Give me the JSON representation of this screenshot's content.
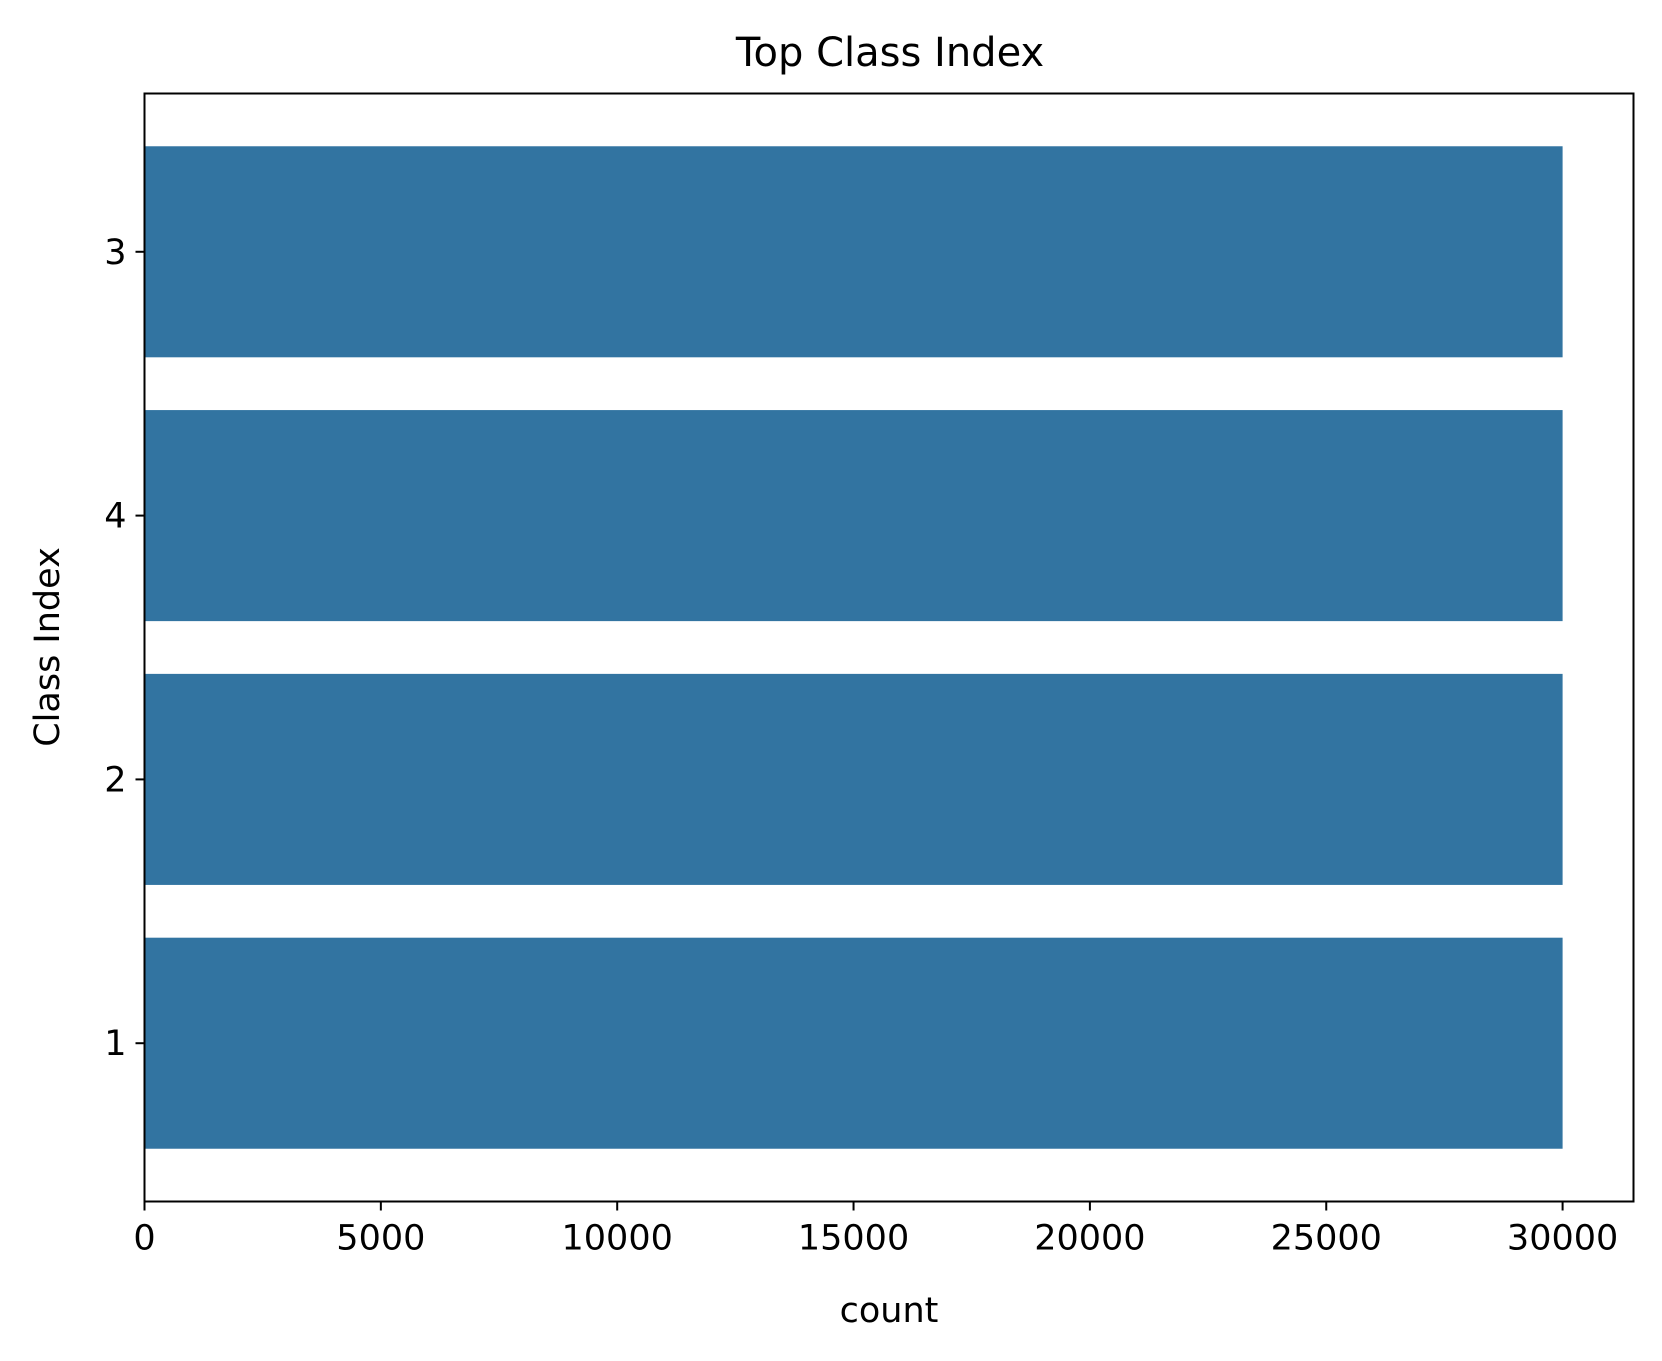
{
  "chart_data": {
    "type": "bar",
    "orientation": "horizontal",
    "title": "Top Class Index",
    "xlabel": "count",
    "ylabel": "Class Index",
    "categories": [
      "3",
      "4",
      "2",
      "1"
    ],
    "values": [
      30000,
      30000,
      30000,
      30000
    ],
    "xlim": [
      0,
      31500
    ],
    "x_ticks": [
      "0",
      "5000",
      "10000",
      "15000",
      "20000",
      "25000",
      "30000"
    ],
    "bar_color": "#3274a1",
    "grid": false,
    "legend": "none"
  }
}
